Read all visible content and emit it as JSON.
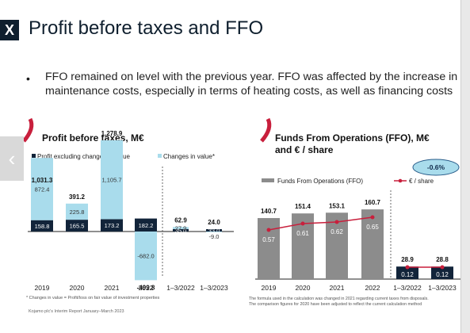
{
  "logo_text": "X",
  "slide_title": "Profit before taxes and FFO",
  "bullet_marker": "•",
  "bullet_text": "FFO remained on level with the previous year. FFO was affected by the increase in maintenance costs, especially in terms of heating costs, as well as financing costs",
  "nav_arrow": "‹",
  "footer_text": "Kojamo plc's Interim Report January–March 2023",
  "colors": {
    "navy": "#12243a",
    "light_blue": "#a9dcec",
    "gray": "#8c8c8c",
    "red": "#c81f3c",
    "oval": "#a9dcec"
  },
  "chart_data": [
    {
      "type": "bar",
      "title": "Profit before taxes, M€",
      "categories": [
        "2019",
        "2020",
        "2021",
        "2022",
        "1–3/2022",
        "1–3/2023"
      ],
      "series": [
        {
          "name": "Profit excluding changes in value",
          "values": [
            158.8,
            165.5,
            173.2,
            182.2,
            35.0,
            33.0
          ]
        },
        {
          "name": "Changes in value*",
          "values": [
            872.4,
            225.8,
            1105.7,
            -682.0,
            27.9,
            -9.0
          ]
        }
      ],
      "totals": [
        1031.3,
        391.2,
        1278.9,
        -499.8,
        62.9,
        24.0
      ],
      "labels": {
        "totals": [
          "1,031.3",
          "391.2",
          "1,278.9",
          "-499.8",
          "62.9",
          "24.0"
        ],
        "profit": [
          "158.8",
          "165.5",
          "173.2",
          "182.2",
          "35.0",
          "33.0"
        ],
        "changes": [
          "872.4",
          "225.8",
          "1,105.7",
          "-682.0",
          "27.9",
          "-9.0"
        ]
      },
      "footnote": "* Changes in value = Profit/loss on fair value of investment properties"
    },
    {
      "type": "bar",
      "title_line1": "Funds From Operations (FFO), M€",
      "title_line2": "and € / share",
      "categories": [
        "2019",
        "2020",
        "2021",
        "2022",
        "1–3/2022",
        "1–3/2023"
      ],
      "series": [
        {
          "name": "Funds From Operations (FFO)",
          "type": "bar",
          "values": [
            140.7,
            151.4,
            153.1,
            160.7,
            28.9,
            28.8
          ]
        },
        {
          "name": "€ / share",
          "type": "line",
          "values": [
            0.57,
            0.61,
            0.62,
            0.65,
            0.12,
            0.12
          ]
        }
      ],
      "labels": {
        "ffo": [
          "140.7",
          "151.4",
          "153.1",
          "160.7",
          "28.9",
          "28.8"
        ],
        "eps": [
          "0.57",
          "0.61",
          "0.62",
          "0.65",
          "0.12",
          "0.12"
        ]
      },
      "change_badge": "-0.6%",
      "footnote_line1": "The formula used in the calculation was changed in 2021 regarding current taxes from disposals.",
      "footnote_line2": "The comparison figures for 2020 have been adjusted to reflect the current calculation method"
    }
  ]
}
